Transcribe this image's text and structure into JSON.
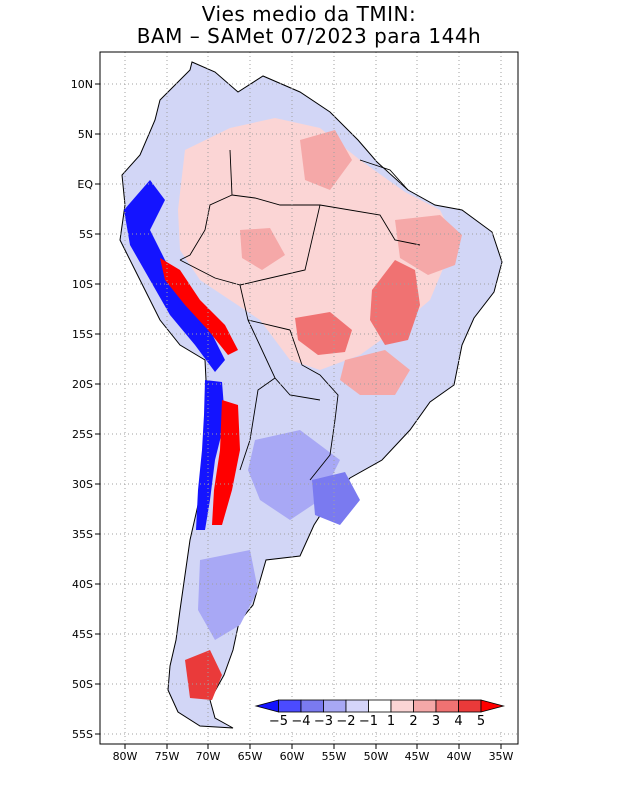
{
  "title": {
    "line1": "Vies medio da TMIN:",
    "line2": "BAM – SAMet 07/2023  para 144h"
  },
  "map": {
    "lon_range": [
      -84,
      -34
    ],
    "lat_range": [
      -56,
      13
    ],
    "lon_ticks": [
      "80W",
      "75W",
      "70W",
      "65W",
      "60W",
      "55W",
      "50W",
      "45W",
      "40W",
      "35W"
    ],
    "lat_ticks": [
      "10N",
      "5N",
      "EQ",
      "5S",
      "10S",
      "15S",
      "20S",
      "25S",
      "30S",
      "35S",
      "40S",
      "45S",
      "50S",
      "55S"
    ],
    "grid": "dotted"
  },
  "colorbar": {
    "labels": [
      "−5",
      "−4",
      "−3",
      "−2",
      "−1",
      "1",
      "2",
      "3",
      "4",
      "5"
    ],
    "colors": [
      "#1414ff",
      "#4b4bff",
      "#7a7af0",
      "#a8a8f5",
      "#d5d5fa",
      "#ffffff",
      "#fbd5d5",
      "#f5a8a8",
      "#f07272",
      "#ea3a3a",
      "#ff0000"
    ]
  }
}
